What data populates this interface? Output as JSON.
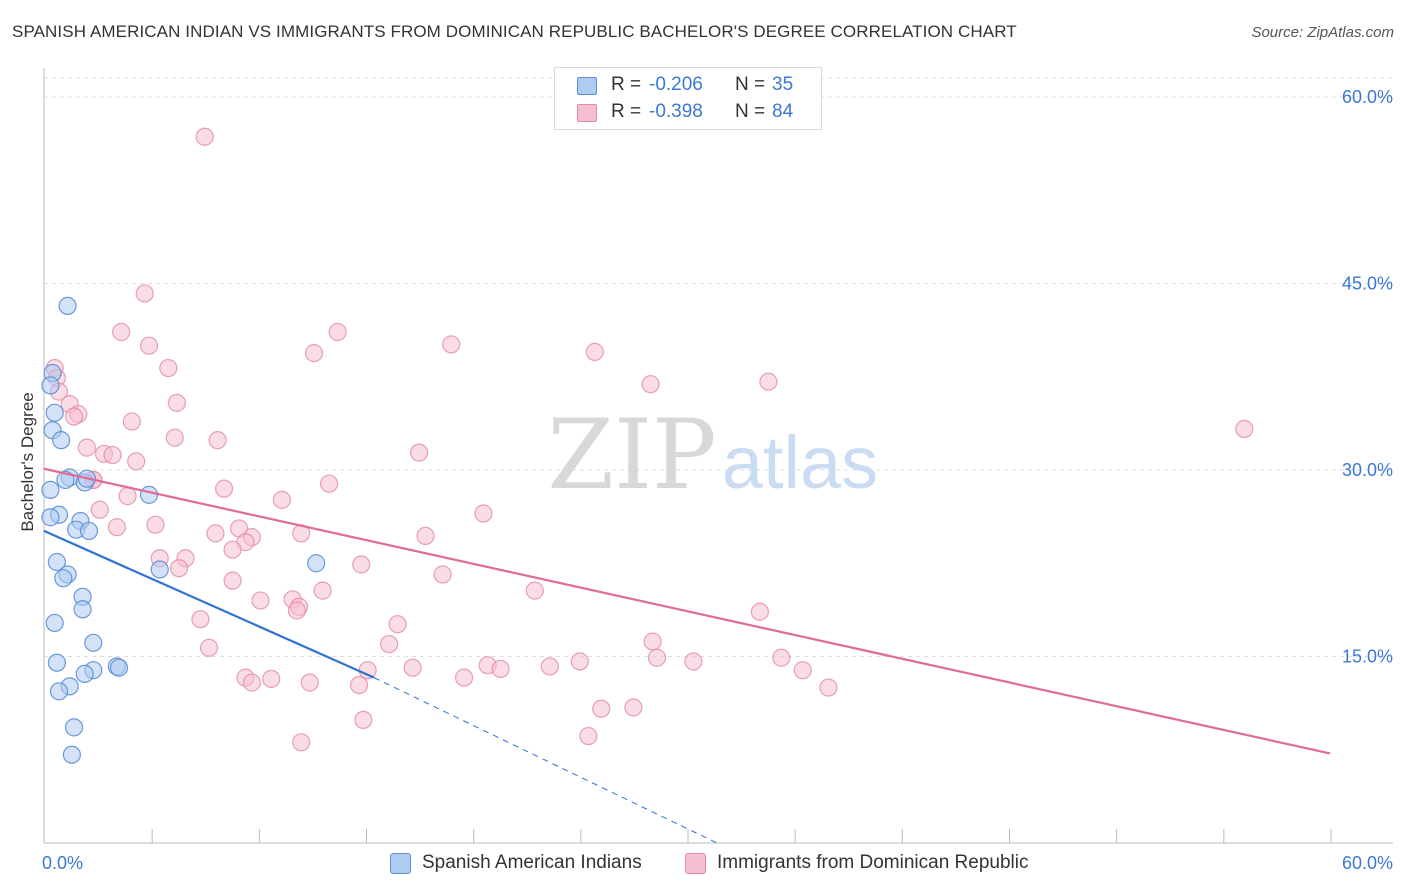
{
  "title": "SPANISH AMERICAN INDIAN VS IMMIGRANTS FROM DOMINICAN REPUBLIC BACHELOR'S DEGREE CORRELATION CHART",
  "source": "Source: ZipAtlas.com",
  "watermark": {
    "zip": "ZIP",
    "atlas": "atlas"
  },
  "legend": {
    "series1": {
      "r_label": "R =",
      "r_value": "-0.206",
      "n_label": "N =",
      "n_value": "35"
    },
    "series2": {
      "r_label": "R =",
      "r_value": "-0.398",
      "n_label": "N =",
      "n_value": "84"
    }
  },
  "bottom_legend": {
    "series1_label": "Spanish American Indians",
    "series2_label": "Immigrants from Dominican Republic"
  },
  "colors": {
    "series1_fill": "#aecbf0",
    "series1_stroke": "#5b8fd6",
    "series1_line": "#2f72d2",
    "series2_fill": "#f6bfd0",
    "series2_stroke": "#e28aa6",
    "series2_line": "#e06b94",
    "axis_label": "#3b78d6",
    "grid": "#dddddd"
  },
  "chart_data": {
    "type": "scatter",
    "title": "SPANISH AMERICAN INDIAN VS IMMIGRANTS FROM DOMINICAN REPUBLIC BACHELOR'S DEGREE CORRELATION CHART",
    "xlabel": "",
    "ylabel": "Bachelor's Degree",
    "xlim": [
      0,
      60
    ],
    "ylim": [
      0,
      62
    ],
    "x_tick_labels": [
      "0.0%",
      "60.0%"
    ],
    "y_ticks": [
      15,
      30,
      45,
      60
    ],
    "y_tick_labels": [
      "15.0%",
      "30.0%",
      "45.0%",
      "60.0%"
    ],
    "grid": true,
    "legend_position": "top-center",
    "series": [
      {
        "name": "Spanish American Indians",
        "points": [
          [
            1.1,
            43.2
          ],
          [
            0.4,
            37.8
          ],
          [
            0.3,
            36.8
          ],
          [
            0.5,
            34.6
          ],
          [
            0.4,
            33.2
          ],
          [
            0.8,
            32.4
          ],
          [
            1.2,
            29.4
          ],
          [
            1.0,
            29.2
          ],
          [
            1.9,
            29.0
          ],
          [
            0.3,
            28.4
          ],
          [
            4.9,
            28.0
          ],
          [
            0.7,
            26.4
          ],
          [
            0.3,
            26.2
          ],
          [
            1.7,
            25.9
          ],
          [
            1.5,
            25.2
          ],
          [
            2.1,
            25.1
          ],
          [
            0.6,
            22.6
          ],
          [
            12.7,
            22.5
          ],
          [
            5.4,
            22.0
          ],
          [
            1.1,
            21.6
          ],
          [
            0.9,
            21.3
          ],
          [
            1.8,
            19.8
          ],
          [
            1.8,
            18.8
          ],
          [
            0.5,
            17.7
          ],
          [
            2.3,
            16.1
          ],
          [
            3.4,
            14.2
          ],
          [
            3.5,
            14.1
          ],
          [
            2.3,
            13.9
          ],
          [
            1.9,
            13.6
          ],
          [
            1.2,
            12.6
          ],
          [
            0.7,
            12.2
          ],
          [
            1.4,
            9.3
          ],
          [
            1.3,
            7.1
          ],
          [
            0.6,
            14.5
          ],
          [
            2.0,
            29.3
          ]
        ]
      },
      {
        "name": "Immigrants from Dominican Republic",
        "points": [
          [
            7.5,
            56.8
          ],
          [
            4.7,
            44.2
          ],
          [
            3.6,
            41.1
          ],
          [
            13.7,
            41.1
          ],
          [
            19.0,
            40.1
          ],
          [
            4.9,
            40.0
          ],
          [
            25.7,
            39.5
          ],
          [
            12.6,
            39.4
          ],
          [
            0.5,
            38.2
          ],
          [
            5.8,
            38.2
          ],
          [
            0.6,
            37.4
          ],
          [
            28.3,
            36.9
          ],
          [
            33.8,
            37.1
          ],
          [
            0.7,
            36.3
          ],
          [
            6.2,
            35.4
          ],
          [
            1.2,
            35.3
          ],
          [
            1.6,
            34.5
          ],
          [
            1.4,
            34.3
          ],
          [
            4.1,
            33.9
          ],
          [
            56.0,
            33.3
          ],
          [
            6.1,
            32.6
          ],
          [
            8.1,
            32.4
          ],
          [
            2.0,
            31.8
          ],
          [
            2.8,
            31.3
          ],
          [
            17.5,
            31.4
          ],
          [
            3.2,
            31.2
          ],
          [
            4.3,
            30.7
          ],
          [
            2.3,
            29.2
          ],
          [
            13.3,
            28.9
          ],
          [
            8.4,
            28.5
          ],
          [
            3.9,
            27.9
          ],
          [
            11.1,
            27.6
          ],
          [
            2.6,
            26.8
          ],
          [
            20.5,
            26.5
          ],
          [
            5.2,
            25.6
          ],
          [
            3.4,
            25.4
          ],
          [
            9.1,
            25.3
          ],
          [
            8.0,
            24.9
          ],
          [
            12.0,
            24.9
          ],
          [
            9.7,
            24.6
          ],
          [
            17.8,
            24.7
          ],
          [
            9.4,
            24.2
          ],
          [
            8.8,
            23.6
          ],
          [
            5.4,
            22.9
          ],
          [
            6.6,
            22.9
          ],
          [
            14.8,
            22.4
          ],
          [
            6.3,
            22.1
          ],
          [
            18.6,
            21.6
          ],
          [
            8.8,
            21.1
          ],
          [
            22.9,
            20.3
          ],
          [
            13.0,
            20.3
          ],
          [
            10.1,
            19.5
          ],
          [
            11.6,
            19.6
          ],
          [
            11.9,
            19.0
          ],
          [
            11.8,
            18.7
          ],
          [
            33.4,
            18.6
          ],
          [
            7.3,
            18.0
          ],
          [
            16.5,
            17.6
          ],
          [
            7.7,
            15.7
          ],
          [
            16.1,
            16.0
          ],
          [
            28.4,
            16.2
          ],
          [
            28.6,
            14.9
          ],
          [
            30.3,
            14.6
          ],
          [
            25.0,
            14.6
          ],
          [
            34.4,
            14.9
          ],
          [
            20.7,
            14.3
          ],
          [
            21.3,
            14.0
          ],
          [
            17.2,
            14.1
          ],
          [
            23.6,
            14.2
          ],
          [
            15.1,
            13.9
          ],
          [
            35.4,
            13.9
          ],
          [
            9.4,
            13.3
          ],
          [
            10.6,
            13.2
          ],
          [
            19.6,
            13.3
          ],
          [
            9.7,
            12.9
          ],
          [
            12.4,
            12.9
          ],
          [
            14.7,
            12.7
          ],
          [
            36.6,
            12.5
          ],
          [
            27.5,
            10.9
          ],
          [
            26.0,
            10.8
          ],
          [
            14.9,
            9.9
          ],
          [
            25.4,
            8.6
          ],
          [
            12.0,
            8.1
          ],
          [
            2.3,
            29.2
          ]
        ]
      }
    ],
    "trend_lines": [
      {
        "series": "Spanish American Indians",
        "x": [
          0,
          15.4
        ],
        "y": [
          25.1,
          13.3
        ],
        "extended_dashed": {
          "x": [
            15.4,
            31.4
          ],
          "y": [
            13.3,
            0.0
          ]
        }
      },
      {
        "series": "Immigrants from Dominican Republic",
        "x": [
          0,
          60
        ],
        "y": [
          30.1,
          7.2
        ]
      }
    ]
  }
}
